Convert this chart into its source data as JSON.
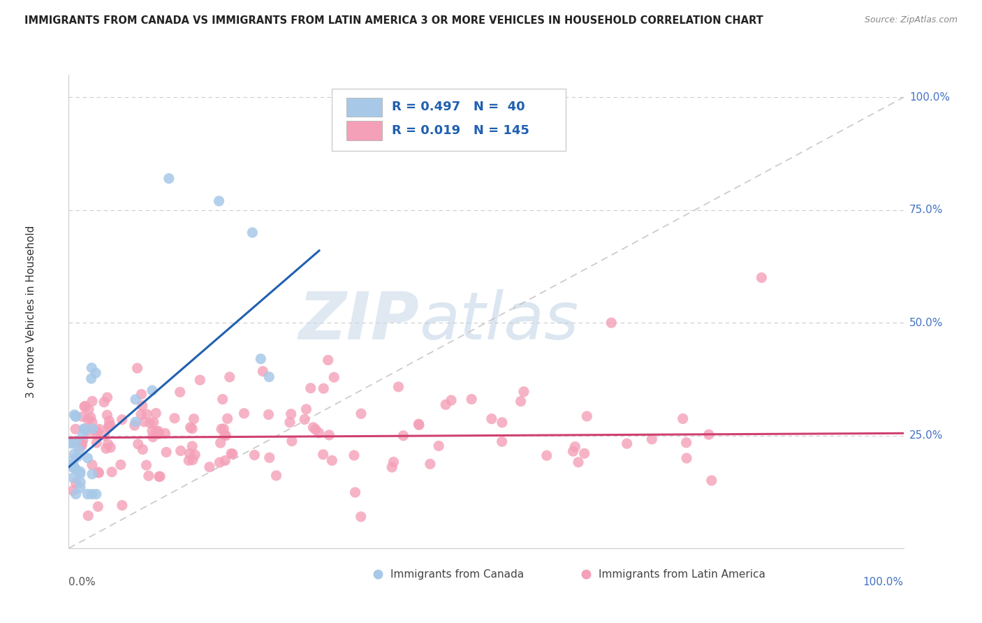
{
  "title": "IMMIGRANTS FROM CANADA VS IMMIGRANTS FROM LATIN AMERICA 3 OR MORE VEHICLES IN HOUSEHOLD CORRELATION CHART",
  "source": "Source: ZipAtlas.com",
  "ylabel": "3 or more Vehicles in Household",
  "canada_color": "#a8c8e8",
  "latin_color": "#f4a0b8",
  "canada_line_color": "#2060b0",
  "latin_line_color": "#d04070",
  "diagonal_color": "#bbbbbb",
  "grid_color": "#cccccc",
  "background_color": "#ffffff",
  "legend_canada_label": "R = 0.497   N =  40",
  "legend_latin_label": "R = 0.019   N = 145",
  "legend_text_color": "#2060b0",
  "watermark_color": "#d8e8f4",
  "bottom_label_canada": "Immigrants from Canada",
  "bottom_label_latin": "Immigrants from Latin America",
  "canada_seed": 42,
  "latin_seed": 99
}
